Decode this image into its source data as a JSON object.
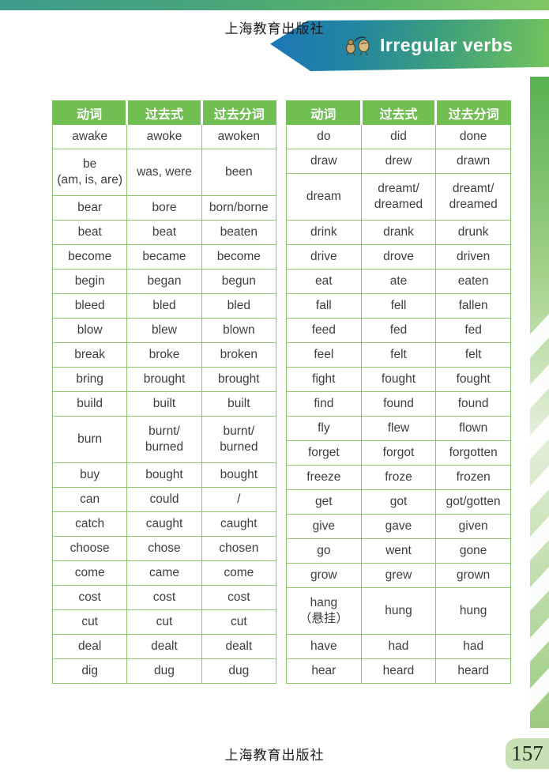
{
  "header": {
    "title": "Irregular verbs"
  },
  "watermarks": {
    "top": "上海教育出版社",
    "bottom": "上海教育出版社"
  },
  "page": {
    "number": "157"
  },
  "colors": {
    "header_green": "#71bf53",
    "table_border_green": "#8cc96e",
    "banner_blue": "#1b76b8",
    "banner_green": "#74c35c",
    "top_bar_teal": "#3f9b8c",
    "side_band_green": "#5db356",
    "page_badge_green": "#c8e0b5"
  },
  "tables": [
    {
      "name": "left",
      "headers": [
        "动词",
        "过去式",
        "过去分词"
      ],
      "rows": [
        [
          "awake",
          "awoke",
          "awoken"
        ],
        [
          "be\n(am, is, are)",
          "was, were",
          "been"
        ],
        [
          "bear",
          "bore",
          "born/borne"
        ],
        [
          "beat",
          "beat",
          "beaten"
        ],
        [
          "become",
          "became",
          "become"
        ],
        [
          "begin",
          "began",
          "begun"
        ],
        [
          "bleed",
          "bled",
          "bled"
        ],
        [
          "blow",
          "blew",
          "blown"
        ],
        [
          "break",
          "broke",
          "broken"
        ],
        [
          "bring",
          "brought",
          "brought"
        ],
        [
          "build",
          "built",
          "built"
        ],
        [
          "burn",
          "burnt/\nburned",
          "burnt/\nburned"
        ],
        [
          "buy",
          "bought",
          "bought"
        ],
        [
          "can",
          "could",
          "/"
        ],
        [
          "catch",
          "caught",
          "caught"
        ],
        [
          "choose",
          "chose",
          "chosen"
        ],
        [
          "come",
          "came",
          "come"
        ],
        [
          "cost",
          "cost",
          "cost"
        ],
        [
          "cut",
          "cut",
          "cut"
        ],
        [
          "deal",
          "dealt",
          "dealt"
        ],
        [
          "dig",
          "dug",
          "dug"
        ]
      ]
    },
    {
      "name": "right",
      "headers": [
        "动词",
        "过去式",
        "过去分词"
      ],
      "rows": [
        [
          "do",
          "did",
          "done"
        ],
        [
          "draw",
          "drew",
          "drawn"
        ],
        [
          "dream",
          "dreamt/\ndreamed",
          "dreamt/\ndreamed"
        ],
        [
          "drink",
          "drank",
          "drunk"
        ],
        [
          "drive",
          "drove",
          "driven"
        ],
        [
          "eat",
          "ate",
          "eaten"
        ],
        [
          "fall",
          "fell",
          "fallen"
        ],
        [
          "feed",
          "fed",
          "fed"
        ],
        [
          "feel",
          "felt",
          "felt"
        ],
        [
          "fight",
          "fought",
          "fought"
        ],
        [
          "find",
          "found",
          "found"
        ],
        [
          "fly",
          "flew",
          "flown"
        ],
        [
          "forget",
          "forgot",
          "forgotten"
        ],
        [
          "freeze",
          "froze",
          "frozen"
        ],
        [
          "get",
          "got",
          "got/gotten"
        ],
        [
          "give",
          "gave",
          "given"
        ],
        [
          "go",
          "went",
          "gone"
        ],
        [
          "grow",
          "grew",
          "grown"
        ],
        [
          "hang\n（悬挂）",
          "hung",
          "hung"
        ],
        [
          "have",
          "had",
          "had"
        ],
        [
          "hear",
          "heard",
          "heard"
        ]
      ]
    }
  ]
}
